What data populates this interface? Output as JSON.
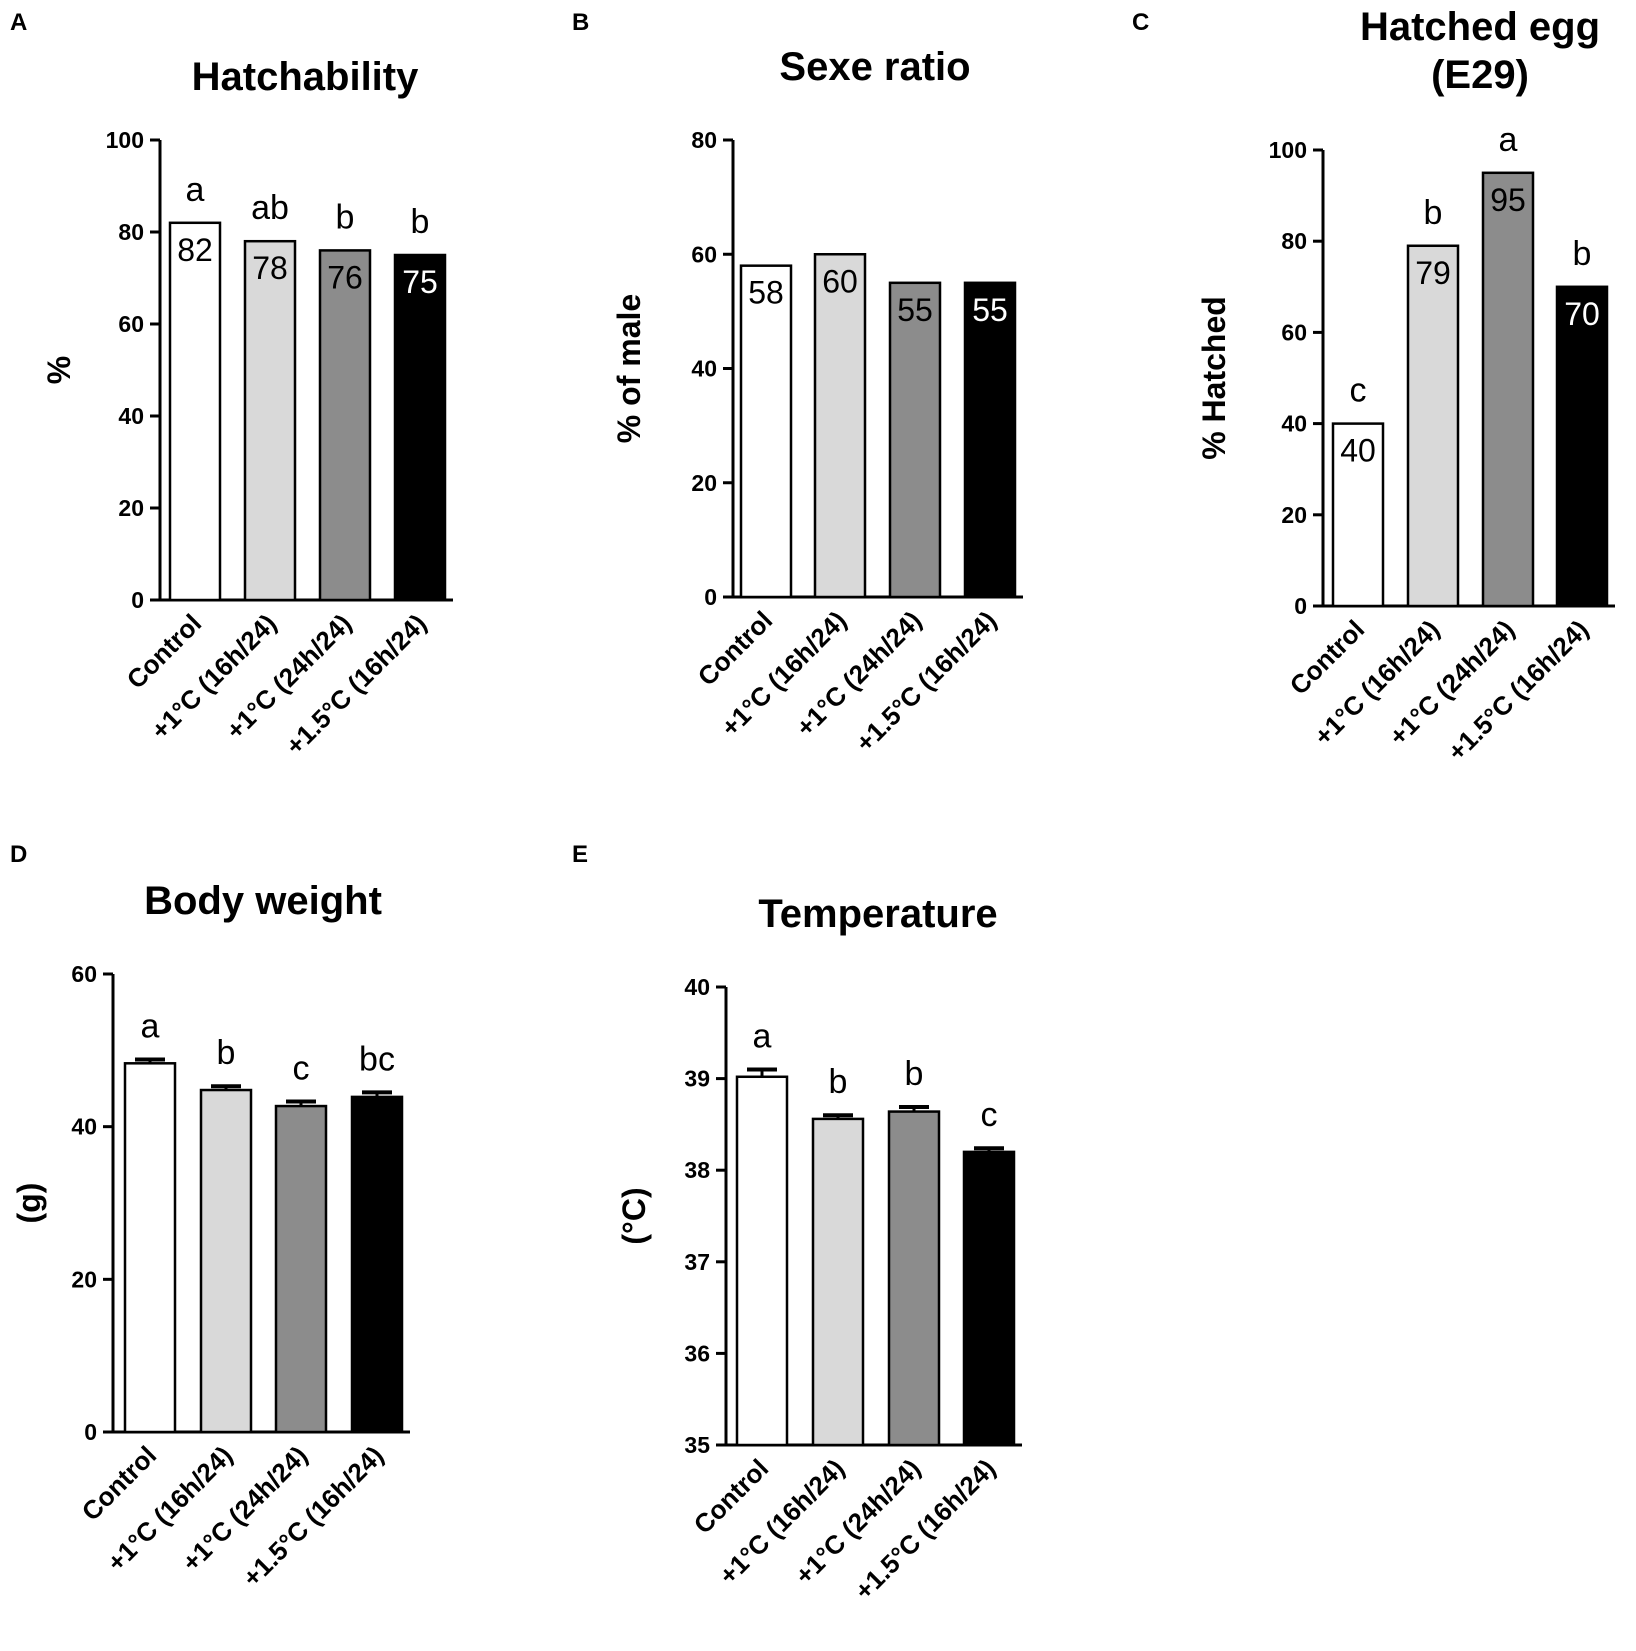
{
  "chart_data": [
    {
      "panel": "A",
      "type": "bar",
      "title": [
        "Hatchability"
      ],
      "ylabel": "%",
      "ylim": [
        0,
        100
      ],
      "yticks": [
        0,
        20,
        40,
        60,
        80,
        100
      ],
      "categories": [
        "Control",
        "+1°C (16h/24)",
        "+1°C (24h/24)",
        "+1.5°C (16h/24)"
      ],
      "values": [
        82,
        78,
        76,
        75
      ],
      "value_labels": [
        "82",
        "78",
        "76",
        "75"
      ],
      "significance": [
        "a",
        "ab",
        "b",
        "b"
      ],
      "error": null
    },
    {
      "panel": "B",
      "type": "bar",
      "title": [
        "Sexe ratio"
      ],
      "ylabel": "% of male",
      "ylim": [
        0,
        80
      ],
      "yticks": [
        0,
        20,
        40,
        60,
        80
      ],
      "categories": [
        "Control",
        "+1°C (16h/24)",
        "+1°C (24h/24)",
        "+1.5°C (16h/24)"
      ],
      "values": [
        58,
        60,
        55,
        55
      ],
      "value_labels": [
        "58",
        "60",
        "55",
        "55"
      ],
      "significance": null,
      "error": null
    },
    {
      "panel": "C",
      "type": "bar",
      "title": [
        "Hatched egg",
        "(E29)"
      ],
      "ylabel": "% Hatched",
      "ylim": [
        0,
        100
      ],
      "yticks": [
        0,
        20,
        40,
        60,
        80,
        100
      ],
      "categories": [
        "Control",
        "+1°C (16h/24)",
        "+1°C (24h/24)",
        "+1.5°C (16h/24)"
      ],
      "values": [
        40,
        79,
        95,
        70
      ],
      "value_labels": [
        "40",
        "79",
        "95",
        "70"
      ],
      "significance": [
        "c",
        "b",
        "a",
        "b"
      ],
      "error": null
    },
    {
      "panel": "D",
      "type": "bar",
      "title": [
        "Body weight"
      ],
      "ylabel": "(g)",
      "ylim": [
        0,
        60
      ],
      "yticks": [
        0,
        20,
        40,
        60
      ],
      "categories": [
        "Control",
        "+1°C (16h/24)",
        "+1°C (24h/24)",
        "+1.5°C (16h/24)"
      ],
      "values": [
        48.3,
        44.8,
        42.7,
        43.9
      ],
      "value_labels": null,
      "significance": [
        "a",
        "b",
        "c",
        "bc"
      ],
      "error": [
        0.5,
        0.5,
        0.6,
        0.6
      ]
    },
    {
      "panel": "E",
      "type": "bar",
      "title": [
        "Temperature"
      ],
      "ylabel": "(°C)",
      "ylim": [
        35,
        40
      ],
      "yticks": [
        35,
        36,
        37,
        38,
        39,
        40
      ],
      "categories": [
        "Control",
        "+1°C (16h/24)",
        "+1°C (24h/24)",
        "+1.5°C (16h/24)"
      ],
      "values": [
        39.02,
        38.56,
        38.64,
        38.2
      ],
      "value_labels": null,
      "significance": [
        "a",
        "b",
        "b",
        "c"
      ],
      "error": [
        0.08,
        0.04,
        0.05,
        0.04
      ]
    }
  ],
  "colors": {
    "fills": [
      "#ffffff",
      "#d9d9d9",
      "#8c8c8c",
      "#000000"
    ],
    "value_text": [
      "#000000",
      "#000000",
      "#000000",
      "#ffffff"
    ],
    "axis": "#000000"
  }
}
